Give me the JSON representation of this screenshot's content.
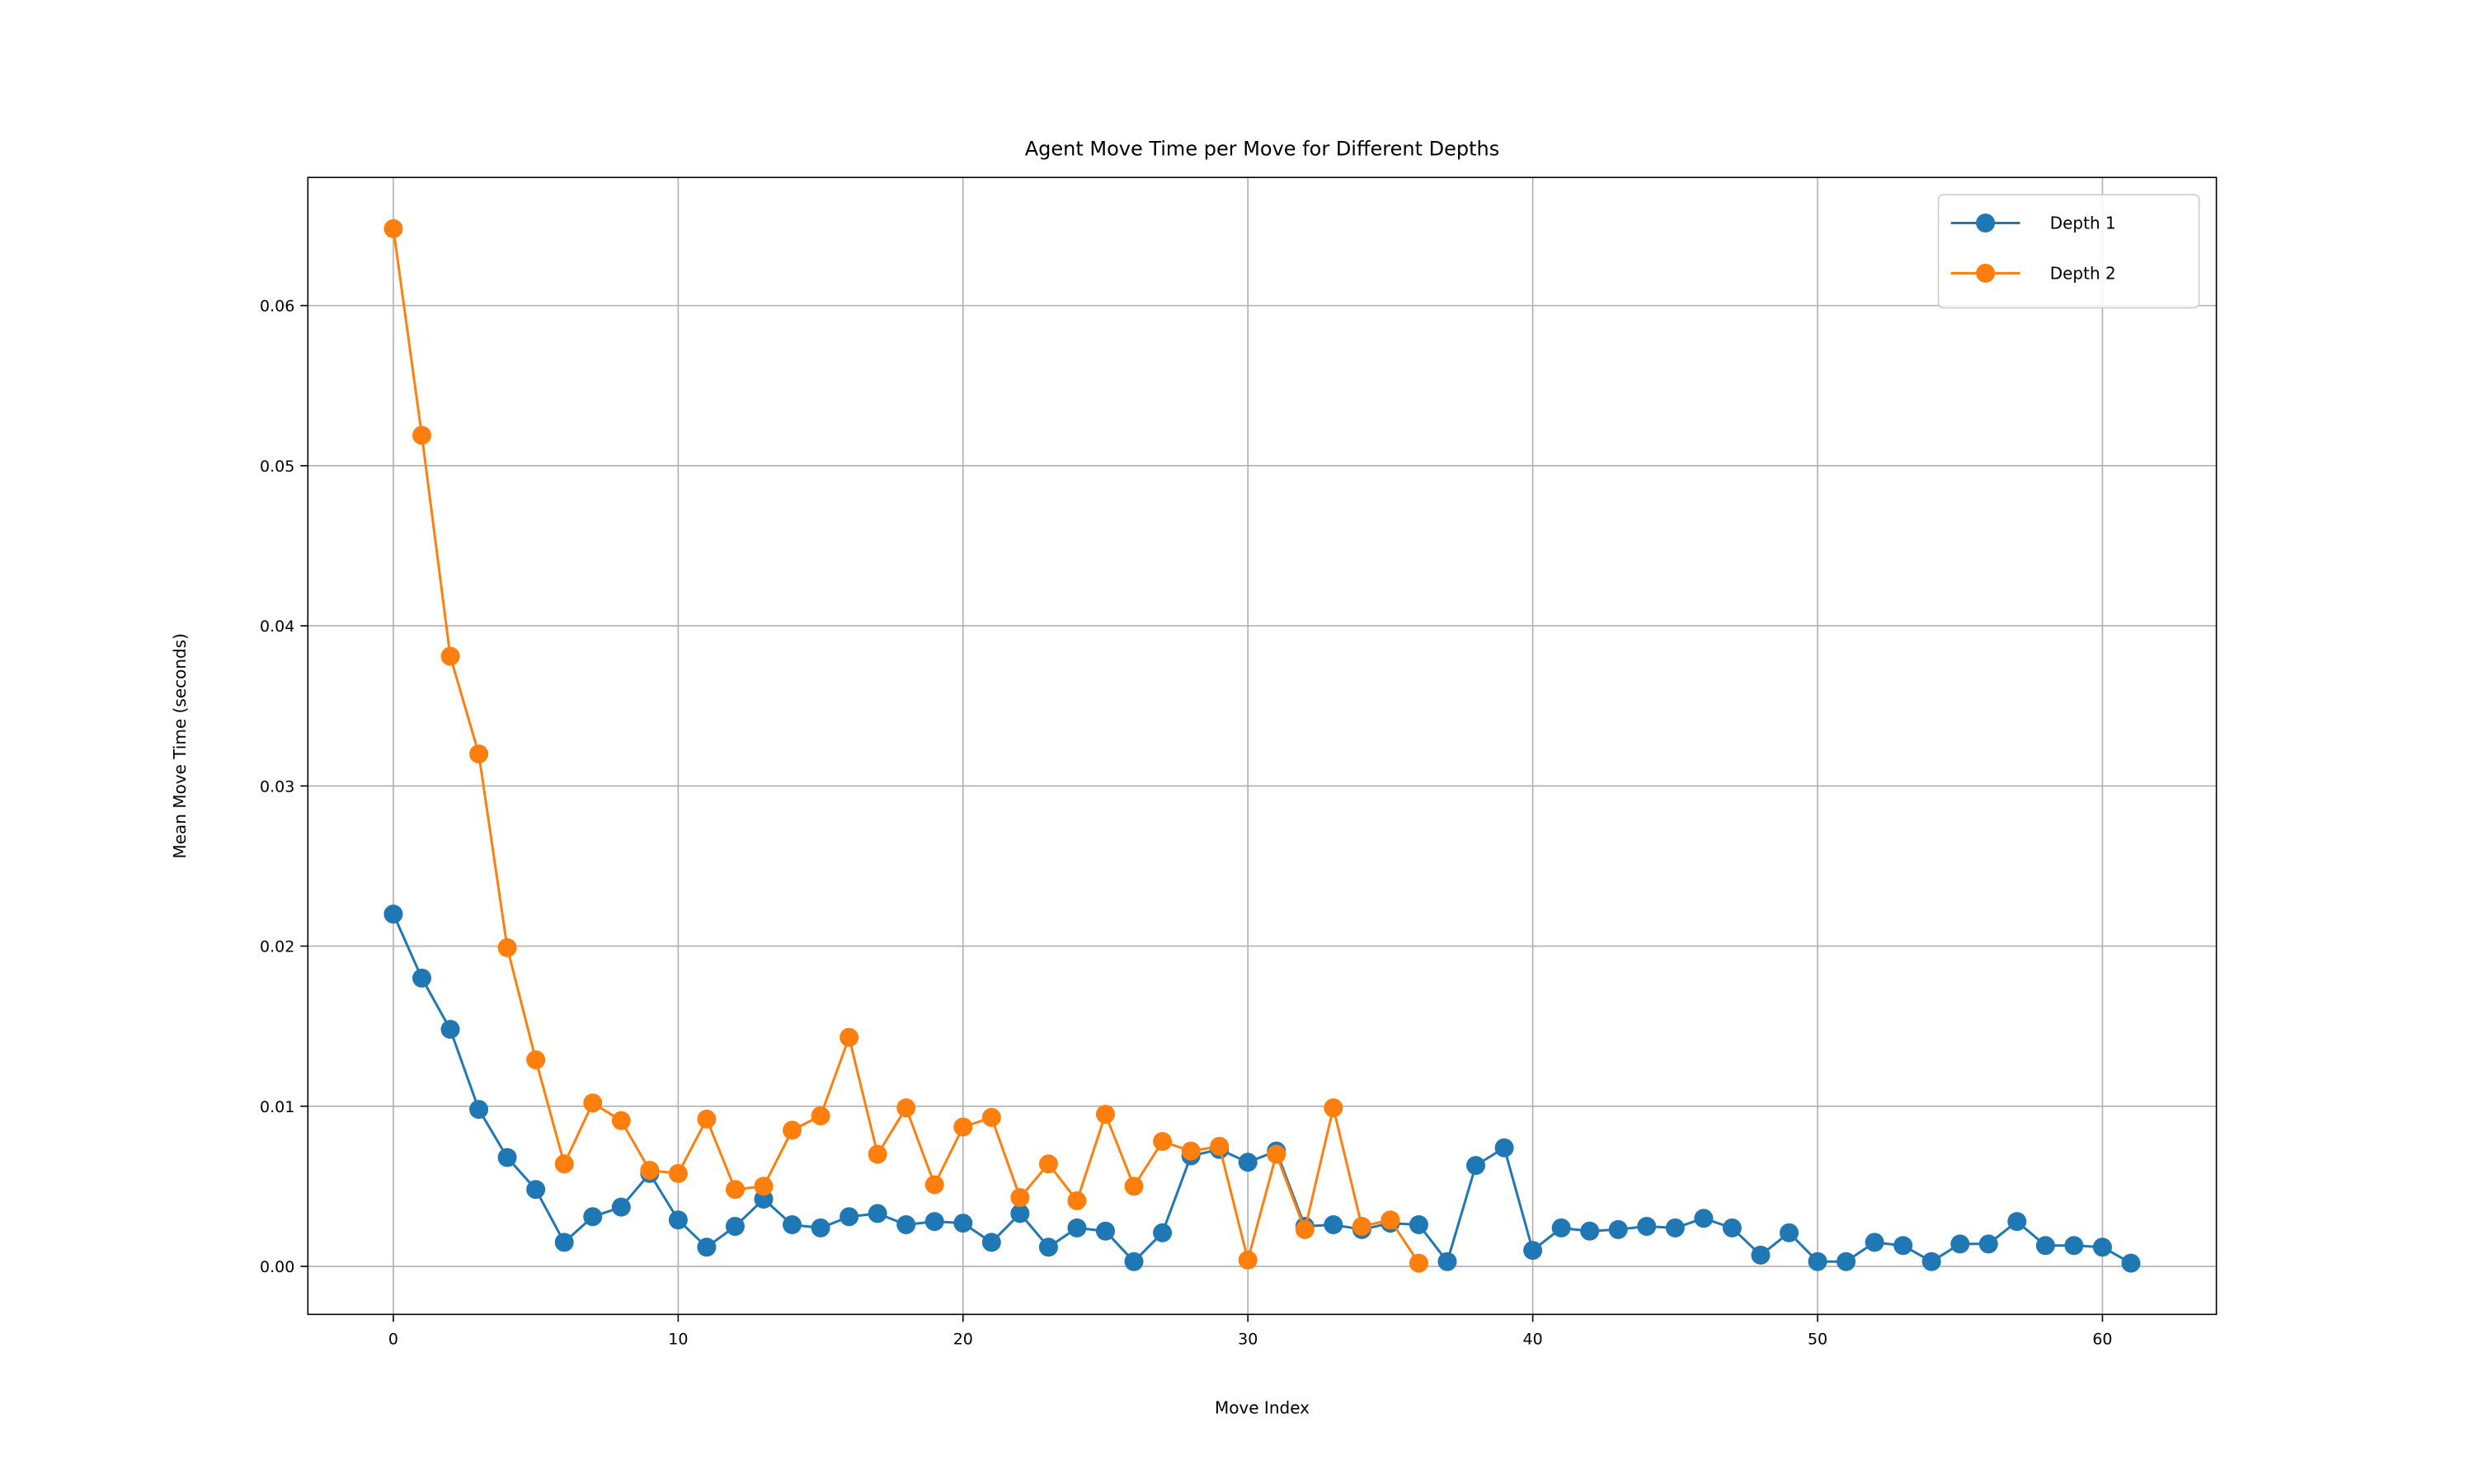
{
  "chart_data": {
    "type": "line",
    "title": "Agent Move Time per Move for Different Depths",
    "xlabel": "Move Index",
    "ylabel": "Mean Move Time (seconds)",
    "xlim": [
      -3,
      64
    ],
    "ylim": [
      -0.003,
      0.068
    ],
    "xticks": [
      0,
      10,
      20,
      30,
      40,
      50,
      60
    ],
    "xtick_labels": [
      "0",
      "10",
      "20",
      "30",
      "40",
      "50",
      "60"
    ],
    "yticks": [
      0.0,
      0.01,
      0.02,
      0.03,
      0.04,
      0.05,
      0.06
    ],
    "ytick_labels": [
      "0.00",
      "0.01",
      "0.02",
      "0.03",
      "0.04",
      "0.05",
      "0.06"
    ],
    "grid": true,
    "legend_position": "top-right",
    "series": [
      {
        "name": "Depth 1",
        "color": "#1f77b4",
        "marker": "circle",
        "x": [
          0,
          1,
          2,
          3,
          4,
          5,
          6,
          7,
          8,
          9,
          10,
          11,
          12,
          13,
          14,
          15,
          16,
          17,
          18,
          19,
          20,
          21,
          22,
          23,
          24,
          25,
          26,
          27,
          28,
          29,
          30,
          31,
          32,
          33,
          34,
          35,
          36,
          37,
          38,
          39,
          40,
          41,
          42,
          43,
          44,
          45,
          46,
          47,
          48,
          49,
          50,
          51,
          52,
          53,
          54,
          55,
          56,
          57,
          58,
          59,
          60,
          61
        ],
        "values": [
          0.022,
          0.018,
          0.0148,
          0.0098,
          0.0068,
          0.0048,
          0.0015,
          0.0031,
          0.0037,
          0.0058,
          0.0029,
          0.0012,
          0.0025,
          0.0042,
          0.0026,
          0.0024,
          0.0031,
          0.0033,
          0.0026,
          0.0028,
          0.0027,
          0.0015,
          0.0033,
          0.0012,
          0.0024,
          0.0022,
          0.0003,
          0.0021,
          0.0069,
          0.0073,
          0.0065,
          0.0072,
          0.0025,
          0.0026,
          0.0023,
          0.0027,
          0.0026,
          0.0003,
          0.0063,
          0.0074,
          0.001,
          0.0024,
          0.0022,
          0.0023,
          0.0025,
          0.0024,
          0.003,
          0.0024,
          0.0007,
          0.0021,
          0.0003,
          0.0003,
          0.0015,
          0.0013,
          0.0003,
          0.0014,
          0.0014,
          0.0028,
          0.0013,
          0.0013,
          0.0012,
          0.0002
        ]
      },
      {
        "name": "Depth 2",
        "color": "#ff7f0e",
        "marker": "circle",
        "x": [
          0,
          1,
          2,
          3,
          4,
          5,
          6,
          7,
          8,
          9,
          10,
          11,
          12,
          13,
          14,
          15,
          16,
          17,
          18,
          19,
          20,
          21,
          22,
          23,
          24,
          25,
          26,
          27,
          28,
          29,
          30,
          31,
          32,
          33,
          34,
          35,
          36
        ],
        "values": [
          0.0648,
          0.0519,
          0.0381,
          0.032,
          0.0199,
          0.0129,
          0.0064,
          0.0102,
          0.0091,
          0.006,
          0.0058,
          0.0092,
          0.0048,
          0.005,
          0.0085,
          0.0094,
          0.0143,
          0.007,
          0.0099,
          0.0051,
          0.0087,
          0.0093,
          0.0043,
          0.0064,
          0.0041,
          0.0095,
          0.005,
          0.0078,
          0.0072,
          0.0075,
          0.0004,
          0.007,
          0.0023,
          0.0099,
          0.0025,
          0.0029,
          0.0002
        ]
      }
    ]
  }
}
